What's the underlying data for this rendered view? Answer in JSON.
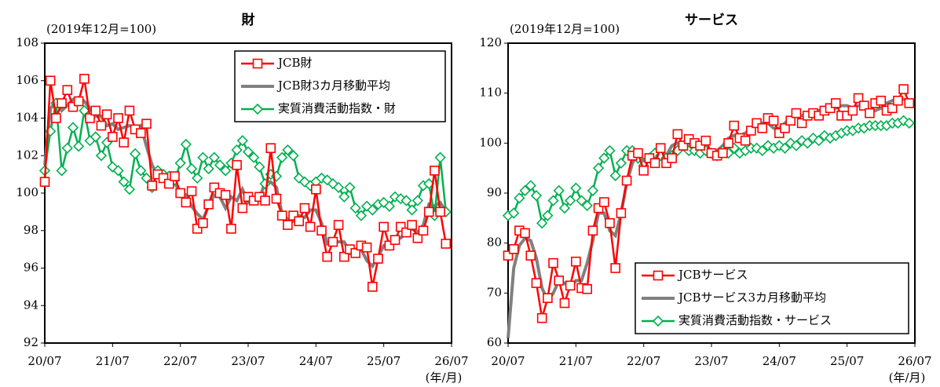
{
  "chart_data": [
    {
      "type": "line",
      "title": "財",
      "subtitle": "(2019年12月=100)",
      "x_unit": "(年/月)",
      "categories": [
        "20/07",
        null,
        null,
        null,
        null,
        null,
        null,
        null,
        null,
        null,
        null,
        null,
        "21/07",
        null,
        null,
        null,
        null,
        null,
        null,
        null,
        null,
        null,
        null,
        null,
        "22/07",
        null,
        null,
        null,
        null,
        null,
        null,
        null,
        null,
        null,
        null,
        null,
        "23/07",
        null,
        null,
        null,
        null,
        null,
        null,
        null,
        null,
        null,
        null,
        null,
        "24/07",
        null,
        null,
        null,
        null,
        null,
        null,
        null,
        null,
        null,
        null,
        null,
        "25/07",
        null,
        null,
        null,
        null,
        null,
        null,
        null,
        null,
        null,
        null,
        null,
        "26/07"
      ],
      "ylim": [
        92,
        108
      ],
      "yticks": [
        92,
        94,
        96,
        98,
        100,
        102,
        104,
        106,
        108
      ],
      "legend": "upper right",
      "series": [
        {
          "name": "JCB財",
          "color": "#ff0000",
          "marker": "square",
          "values": [
            100.6,
            106.0,
            104.0,
            104.8,
            105.5,
            104.6,
            104.9,
            106.1,
            104.0,
            104.4,
            103.6,
            104.2,
            103.0,
            104.0,
            102.7,
            104.4,
            103.4,
            103.2,
            103.7,
            100.4,
            101.0,
            100.8,
            100.5,
            100.9,
            100.0,
            99.5,
            100.1,
            98.1,
            98.4,
            99.4,
            100.3,
            100.0,
            99.9,
            98.1,
            101.5,
            99.2,
            99.8,
            99.6,
            99.8,
            99.6,
            102.4,
            99.7,
            98.8,
            98.3,
            98.8,
            98.5,
            99.2,
            98.2,
            100.2,
            98.0,
            96.6,
            97.4,
            98.3,
            96.6,
            97.0,
            96.8,
            97.2,
            97.1,
            95.0,
            96.5,
            98.2,
            97.2,
            97.5,
            98.2,
            97.9,
            98.3,
            97.6,
            98.0,
            99.0,
            101.2,
            99.0,
            97.3,
            null
          ]
        },
        {
          "name": "JCB財3カ月移動平均",
          "color": "#808080",
          "marker": "none",
          "values": [
            101.5,
            104.5,
            104.9,
            104.4,
            104.7,
            105.0,
            105.1,
            104.9,
            104.5,
            104.1,
            104.1,
            103.6,
            103.7,
            103.4,
            103.5,
            103.6,
            103.5,
            103.6,
            102.5,
            101.5,
            100.9,
            100.8,
            100.7,
            100.5,
            100.1,
            99.9,
            99.3,
            98.9,
            98.6,
            99.3,
            99.9,
            99.8,
            99.2,
            99.8,
            99.6,
            100.2,
            99.5,
            99.7,
            99.7,
            100.6,
            100.6,
            100.3,
            98.9,
            98.6,
            98.5,
            98.8,
            98.7,
            99.1,
            99.1,
            98.4,
            97.3,
            97.5,
            97.4,
            97.4,
            96.8,
            97.0,
            97.0,
            96.4,
            96.1,
            96.6,
            97.2,
            97.3,
            97.6,
            97.6,
            97.9,
            98.1,
            97.9,
            98.3,
            99.4,
            99.3,
            99.5,
            99.0,
            null
          ]
        },
        {
          "name": "実質消費活動指数・財",
          "color": "#00b050",
          "marker": "diamond",
          "values": [
            101.2,
            103.3,
            104.8,
            101.2,
            102.4,
            103.5,
            102.5,
            104.4,
            102.8,
            103.0,
            102.0,
            102.7,
            101.4,
            101.2,
            100.6,
            100.2,
            102.1,
            101.2,
            100.8,
            100.3,
            101.2,
            101.0,
            100.9,
            100.7,
            101.6,
            102.6,
            101.3,
            100.8,
            101.9,
            101.3,
            101.9,
            101.5,
            101.2,
            101.6,
            102.3,
            102.8,
            102.2,
            101.9,
            101.4,
            100.5,
            101.0,
            100.9,
            101.9,
            102.3,
            102.0,
            100.8,
            100.6,
            100.4,
            100.6,
            100.8,
            100.7,
            100.5,
            100.3,
            99.8,
            100.3,
            99.2,
            98.8,
            99.3,
            99.1,
            99.4,
            99.5,
            99.3,
            99.8,
            99.7,
            99.6,
            99.1,
            99.6,
            100.4,
            100.5,
            98.8,
            101.9,
            99.0,
            null
          ]
        }
      ]
    },
    {
      "type": "line",
      "title": "サービス",
      "subtitle": "(2019年12月=100)",
      "x_unit": "(年/月)",
      "categories": [
        "20/07",
        null,
        null,
        null,
        null,
        null,
        null,
        null,
        null,
        null,
        null,
        null,
        "21/07",
        null,
        null,
        null,
        null,
        null,
        null,
        null,
        null,
        null,
        null,
        null,
        "22/07",
        null,
        null,
        null,
        null,
        null,
        null,
        null,
        null,
        null,
        null,
        null,
        "23/07",
        null,
        null,
        null,
        null,
        null,
        null,
        null,
        null,
        null,
        null,
        null,
        "24/07",
        null,
        null,
        null,
        null,
        null,
        null,
        null,
        null,
        null,
        null,
        null,
        "25/07",
        null,
        null,
        null,
        null,
        null,
        null,
        null,
        null,
        null,
        null,
        null,
        "26/07"
      ],
      "ylim": [
        60,
        120
      ],
      "yticks": [
        60,
        70,
        80,
        90,
        100,
        110,
        120
      ],
      "legend": "lower right",
      "series": [
        {
          "name": "JCBサービス",
          "color": "#ff0000",
          "marker": "square",
          "values": [
            77.5,
            78.8,
            82.5,
            82.0,
            77.5,
            72.0,
            65.0,
            69.0,
            76.0,
            72.5,
            68.0,
            71.5,
            76.3,
            71.0,
            70.8,
            82.5,
            87.0,
            88.2,
            84.0,
            75.0,
            86.0,
            92.5,
            97.5,
            98.0,
            94.5,
            97.0,
            96.0,
            99.0,
            96.0,
            97.0,
            101.8,
            99.5,
            100.8,
            100.0,
            99.5,
            100.5,
            98.0,
            97.5,
            98.0,
            100.0,
            103.5,
            101.0,
            100.5,
            102.5,
            104.0,
            103.0,
            105.0,
            104.5,
            102.0,
            103.0,
            104.5,
            106.0,
            104.0,
            105.5,
            106.0,
            105.5,
            106.5,
            107.0,
            108.0,
            105.5,
            105.5,
            106.5,
            109.0,
            107.5,
            106.0,
            108.0,
            108.5,
            106.5,
            107.0,
            108.5,
            110.8,
            108.0,
            null
          ]
        },
        {
          "name": "JCBサービス3カ月移動平均",
          "color": "#808080",
          "marker": "none",
          "values": [
            61,
            75,
            79.5,
            81,
            80.5,
            77,
            71,
            68.5,
            70,
            72.5,
            72,
            71,
            72.5,
            72.5,
            76,
            80.5,
            86,
            86,
            82.5,
            81.5,
            86,
            92,
            96,
            98,
            96.5,
            96.5,
            97.5,
            98.5,
            97.5,
            99.5,
            100,
            100,
            100,
            99.5,
            99,
            99,
            98.5,
            98.5,
            99.5,
            101,
            101.5,
            101.5,
            102,
            103,
            103.5,
            104,
            104,
            103,
            103,
            104,
            105,
            105.5,
            105.5,
            105.5,
            106,
            106.5,
            107,
            106.5,
            107,
            107.5,
            107.5,
            107,
            107.5,
            107.5,
            106.5,
            106.5,
            107,
            108,
            108.5,
            109,
            108.8,
            108.5,
            null
          ]
        },
        {
          "name": "実質消費活動指数・サービス",
          "color": "#00b050",
          "marker": "diamond",
          "values": [
            85.5,
            86,
            89,
            90.5,
            91.5,
            89.5,
            84,
            85.5,
            88.5,
            90.5,
            87,
            88.5,
            91,
            88.5,
            87.5,
            90.5,
            95,
            97,
            98.5,
            93.5,
            96,
            98.5,
            98.5,
            97,
            95.5,
            97,
            98,
            97.5,
            97,
            97.5,
            98.5,
            99.5,
            98.5,
            98.5,
            98,
            98.5,
            98,
            97.5,
            98.5,
            98,
            99,
            98,
            98.5,
            99,
            99,
            98.5,
            99.5,
            99,
            99.5,
            99,
            100,
            99.5,
            100.5,
            100,
            101,
            100.5,
            101.5,
            101,
            101.5,
            102,
            102.5,
            102.5,
            103,
            103,
            103.5,
            103.5,
            103.5,
            103.5,
            104,
            104,
            104.5,
            104,
            null
          ]
        }
      ]
    }
  ]
}
